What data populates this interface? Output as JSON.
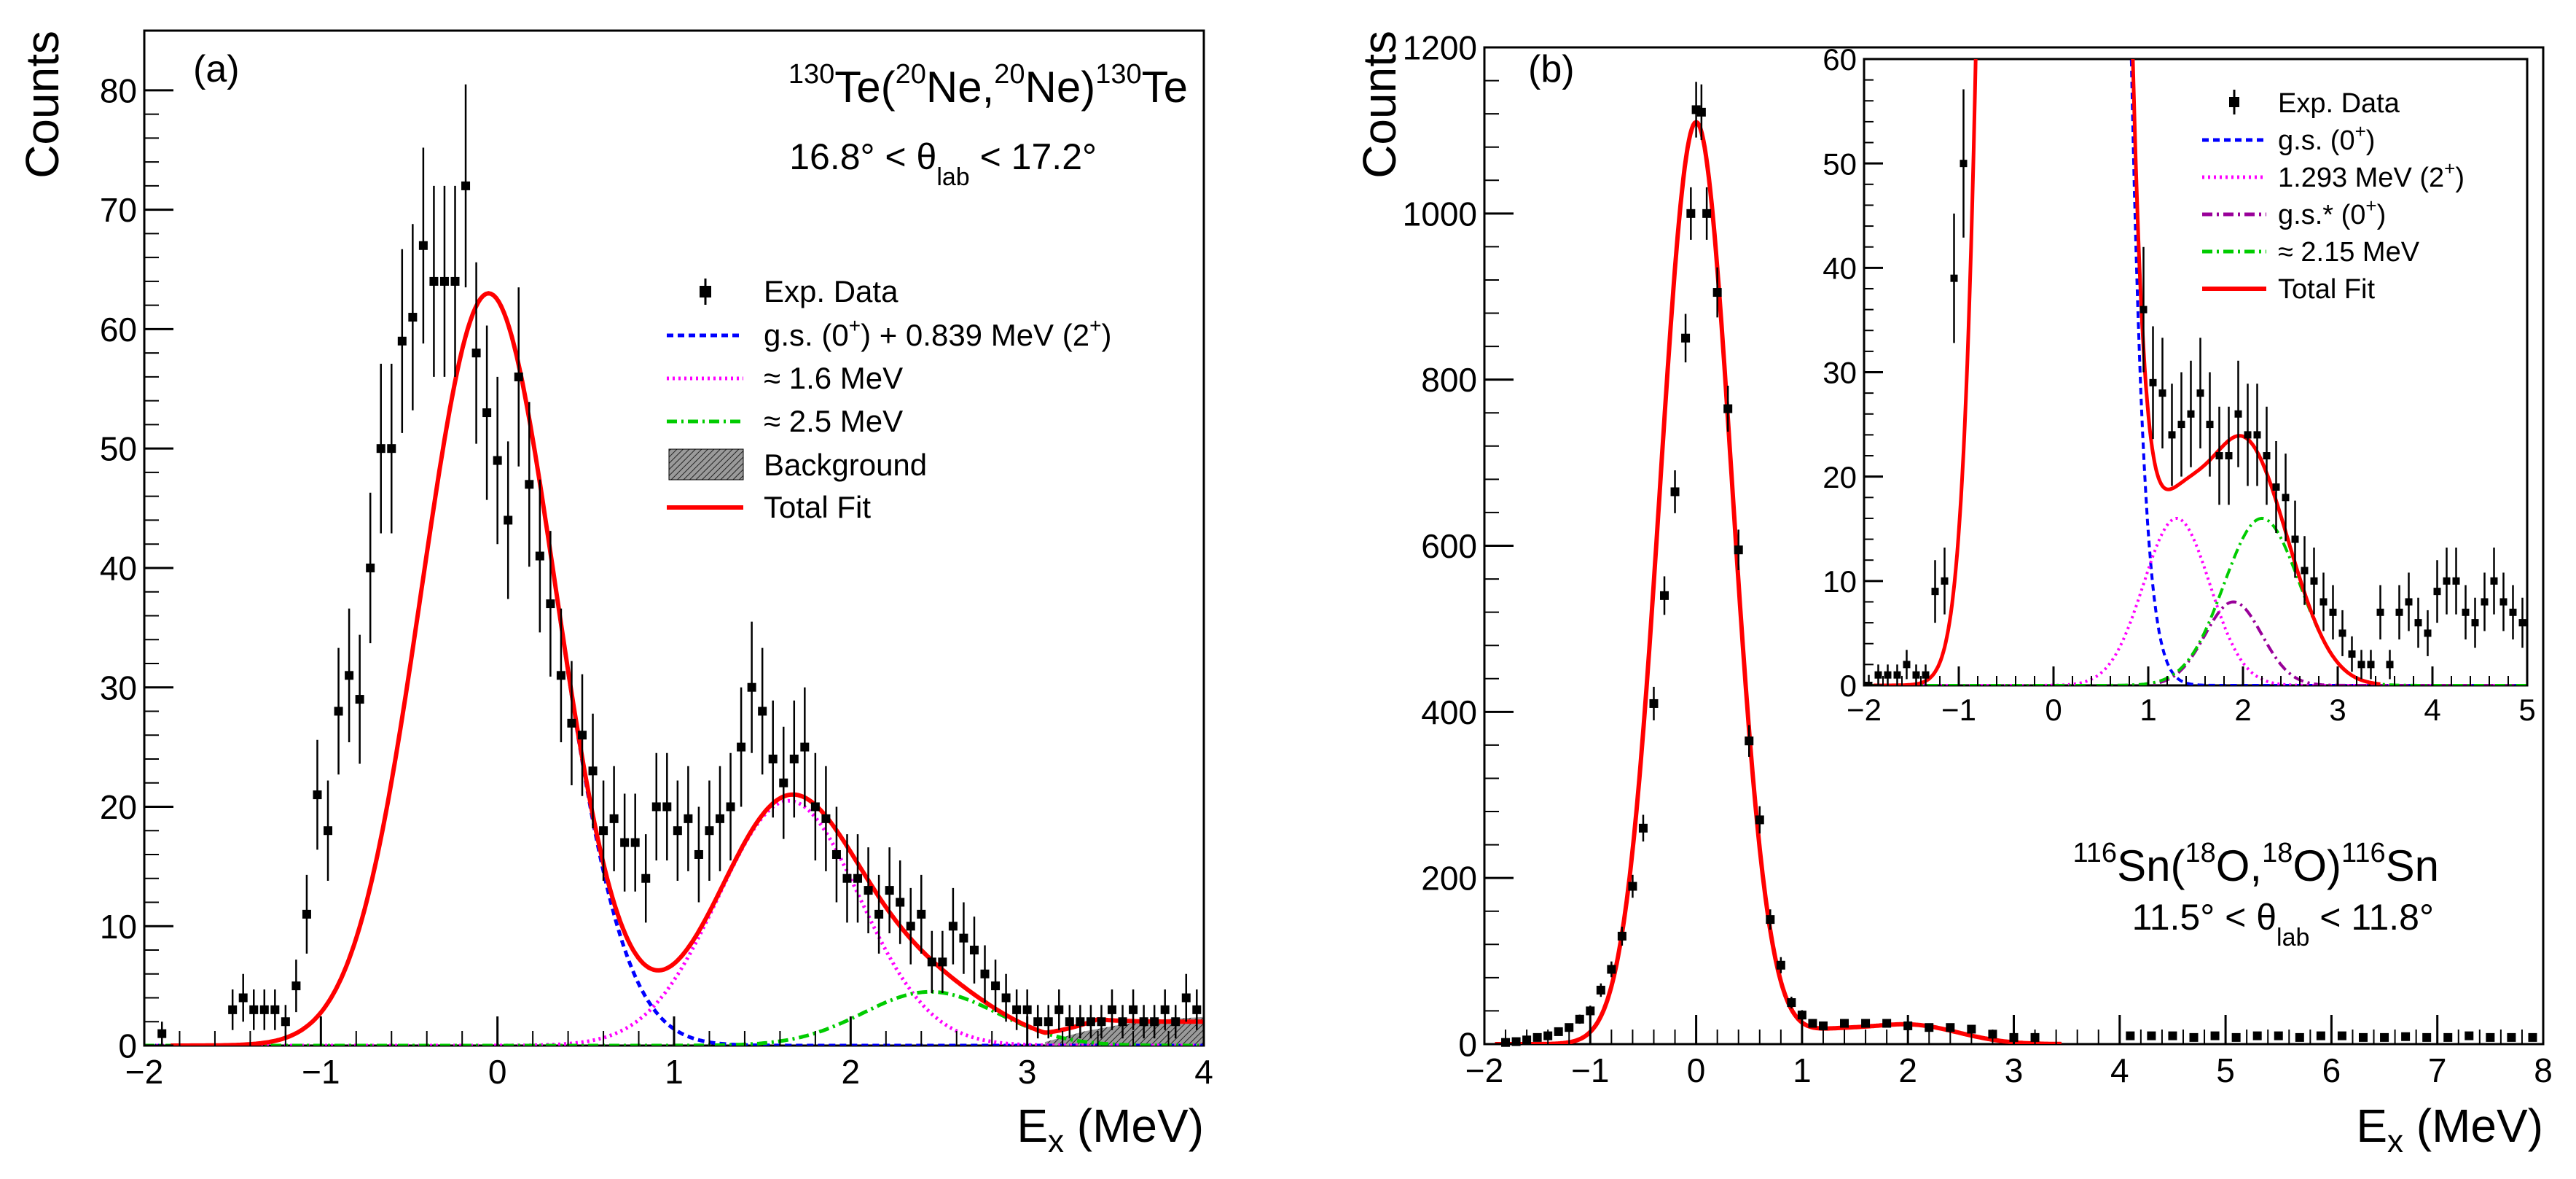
{
  "colors": {
    "frame": "#000000",
    "data": "#000000",
    "fit": "#ff0000",
    "gs": "#0000ff",
    "magenta": "#ff00ff",
    "green": "#00cc00",
    "purple": "#990099"
  },
  "chart_data": [
    {
      "id": "a",
      "type": "scatter",
      "panel_label": "(a)",
      "reaction": {
        "a1": "130",
        "t1": "Te(",
        "a2": "20",
        "t2": "Ne,",
        "a3": "20",
        "t3": "Ne)",
        "a4": "130",
        "t4": "Te"
      },
      "angle": {
        "pre": "16.8° < θ",
        "sub": "lab",
        "post": " < 17.2°"
      },
      "xlabel": {
        "main": "E",
        "sub": "x",
        "unit": " (MeV)"
      },
      "ylabel": "Counts",
      "xlim": [
        -2,
        4
      ],
      "ylim": [
        0,
        85
      ],
      "xticks": [
        -2,
        -1,
        0,
        1,
        2,
        3,
        4
      ],
      "yticks": [
        0,
        10,
        20,
        30,
        40,
        50,
        60,
        70,
        80
      ],
      "legend_position": "right",
      "legend": [
        {
          "key": "data",
          "text": "Exp. Data"
        },
        {
          "key": "gs",
          "text": "g.s. (0",
          "sup": "+",
          "text2": ") + 0.839 MeV (2",
          "sup2": "+",
          "text3": ")"
        },
        {
          "key": "c16",
          "text": "≈ 1.6 MeV"
        },
        {
          "key": "c25",
          "text": "≈ 2.5 MeV"
        },
        {
          "key": "bg",
          "text": "Background"
        },
        {
          "key": "fit",
          "text": "Total Fit"
        }
      ],
      "data_points": {
        "x": [
          -1.9,
          -1.5,
          -1.44,
          -1.38,
          -1.32,
          -1.26,
          -1.2,
          -1.14,
          -1.08,
          -1.02,
          -0.96,
          -0.9,
          -0.84,
          -0.78,
          -0.72,
          -0.66,
          -0.6,
          -0.54,
          -0.48,
          -0.42,
          -0.36,
          -0.3,
          -0.24,
          -0.18,
          -0.12,
          -0.06,
          0.0,
          0.06,
          0.12,
          0.18,
          0.24,
          0.3,
          0.36,
          0.42,
          0.48,
          0.54,
          0.6,
          0.66,
          0.72,
          0.78,
          0.84,
          0.9,
          0.96,
          1.02,
          1.08,
          1.14,
          1.2,
          1.26,
          1.32,
          1.38,
          1.44,
          1.5,
          1.56,
          1.62,
          1.68,
          1.74,
          1.8,
          1.86,
          1.92,
          1.98,
          2.04,
          2.1,
          2.16,
          2.22,
          2.28,
          2.34,
          2.4,
          2.46,
          2.52,
          2.58,
          2.64,
          2.7,
          2.76,
          2.82,
          2.88,
          2.94,
          3.0,
          3.06,
          3.12,
          3.18,
          3.24,
          3.3,
          3.36,
          3.42,
          3.48,
          3.54,
          3.6,
          3.66,
          3.72,
          3.78,
          3.84,
          3.9,
          3.96
        ],
        "y": [
          1,
          3,
          4,
          3,
          3,
          3,
          2,
          5,
          11,
          21,
          18,
          28,
          31,
          29,
          40,
          50,
          50,
          59,
          61,
          67,
          64,
          64,
          64,
          72,
          58,
          53,
          49,
          44,
          56,
          47,
          41,
          37,
          31,
          27,
          26,
          23,
          18,
          19,
          17,
          17,
          14,
          20,
          20,
          18,
          19,
          16,
          18,
          19,
          20,
          25,
          30,
          28,
          24,
          22,
          24,
          25,
          20,
          19,
          16,
          14,
          14,
          13,
          11,
          13,
          12,
          10,
          11,
          7,
          7,
          10,
          9,
          8,
          6,
          5,
          4,
          3,
          3,
          2,
          2,
          3,
          2,
          2,
          2,
          2,
          3,
          2,
          3,
          2,
          2,
          3,
          2,
          4,
          3
        ],
        "err": [
          1,
          1.7,
          2,
          1.7,
          1.7,
          1.7,
          1.4,
          2.2,
          3.3,
          4.6,
          4.2,
          5.3,
          5.6,
          5.4,
          6.3,
          7.1,
          7.1,
          7.7,
          7.8,
          8.2,
          8,
          8,
          8,
          8.5,
          7.6,
          7.3,
          7,
          6.6,
          7.5,
          6.9,
          6.4,
          6.1,
          5.6,
          5.2,
          5.1,
          4.8,
          4.2,
          4.4,
          4.1,
          4.1,
          3.7,
          4.5,
          4.5,
          4.2,
          4.4,
          4,
          4.2,
          4.4,
          4.5,
          5,
          5.5,
          5.3,
          4.9,
          4.7,
          4.9,
          5,
          4.5,
          4.4,
          4,
          3.7,
          3.7,
          3.6,
          3.3,
          3.6,
          3.5,
          3.2,
          3.3,
          2.6,
          2.6,
          3.2,
          3,
          2.8,
          2.4,
          2.2,
          2,
          1.7,
          1.7,
          1.4,
          1.4,
          1.7,
          1.4,
          1.4,
          1.4,
          1.4,
          1.7,
          1.4,
          1.7,
          1.4,
          1.4,
          1.7,
          1.4,
          2,
          1.7
        ]
      },
      "components": [
        {
          "key": "gs",
          "color": "#0000ff",
          "dash": "dotted-dense",
          "peaks": [
            {
              "mu": -0.05,
              "sigma": 0.38,
              "amp": 63
            }
          ]
        },
        {
          "key": "c16",
          "color": "#ff00ff",
          "dash": "dotted",
          "peaks": [
            {
              "mu": 1.65,
              "sigma": 0.4,
              "amp": 20.5
            }
          ]
        },
        {
          "key": "c25",
          "color": "#00cc00",
          "dash": "dashdot",
          "peaks": [
            {
              "mu": 2.45,
              "sigma": 0.38,
              "amp": 4.5
            }
          ]
        }
      ],
      "background": {
        "start": 3.1,
        "end": 4.0,
        "values": [
          0.3,
          1.2,
          1.8,
          2.2,
          2.4
        ]
      },
      "fit": {
        "color": "#ff0000",
        "peaks": [
          {
            "mu": -0.05,
            "sigma": 0.38,
            "amp": 63
          },
          {
            "mu": 1.65,
            "sigma": 0.4,
            "amp": 20.5
          },
          {
            "mu": 2.45,
            "sigma": 0.38,
            "amp": 4.5
          }
        ],
        "tail": {
          "start": 3.1,
          "value": 2.0
        }
      }
    },
    {
      "id": "b",
      "type": "scatter",
      "panel_label": "(b)",
      "reaction": {
        "a1": "116",
        "t1": "Sn(",
        "a2": "18",
        "t2": "O,",
        "a3": "18",
        "t3": "O)",
        "a4": "116",
        "t4": "Sn"
      },
      "angle": {
        "pre": "11.5° < θ",
        "sub": "lab",
        "post": " < 11.8°"
      },
      "xlabel": {
        "main": "E",
        "sub": "x",
        "unit": " (MeV)"
      },
      "ylabel": "Counts",
      "xlim": [
        -2,
        8
      ],
      "ylim": [
        0,
        1200
      ],
      "xticks": [
        -2,
        -1,
        0,
        1,
        2,
        3,
        4,
        5,
        6,
        7,
        8
      ],
      "yticks": [
        0,
        200,
        400,
        600,
        800,
        1000,
        1200
      ],
      "data_points": {
        "x": [
          -1.8,
          -1.7,
          -1.6,
          -1.5,
          -1.4,
          -1.3,
          -1.2,
          -1.1,
          -1.0,
          -0.9,
          -0.8,
          -0.7,
          -0.6,
          -0.5,
          -0.4,
          -0.3,
          -0.2,
          -0.1,
          -0.05,
          0.0,
          0.05,
          0.1,
          0.2,
          0.3,
          0.4,
          0.5,
          0.6,
          0.7,
          0.8,
          0.9,
          1.0,
          1.1,
          1.2,
          1.4,
          1.6,
          1.8,
          2.0,
          2.2,
          2.4,
          2.6,
          2.8,
          3.0,
          3.2,
          4.1,
          4.3,
          4.5,
          4.7,
          4.9,
          5.1,
          5.3,
          5.5,
          5.7,
          5.9,
          6.1,
          6.3,
          6.5,
          6.7,
          6.9,
          7.1,
          7.3,
          7.5,
          7.7,
          7.9
        ],
        "y": [
          2,
          3,
          5,
          8,
          10,
          15,
          20,
          30,
          40,
          65,
          90,
          130,
          190,
          260,
          410,
          540,
          665,
          850,
          1000,
          1125,
          1122,
          1000,
          905,
          765,
          595,
          365,
          270,
          150,
          95,
          50,
          35,
          25,
          22,
          25,
          25,
          25,
          22,
          20,
          20,
          18,
          12,
          8,
          8,
          10,
          10,
          10,
          8,
          10,
          8,
          10,
          10,
          8,
          10,
          10,
          8,
          8,
          9,
          8,
          8,
          10,
          8,
          8,
          8
        ],
        "err": [
          1.4,
          1.7,
          2.2,
          2.8,
          3.2,
          3.9,
          4.5,
          5.5,
          6.3,
          8.1,
          9.5,
          11.4,
          13.8,
          16.1,
          20.2,
          23.2,
          25.8,
          29.2,
          31.6,
          33.5,
          33.5,
          31.6,
          30.1,
          27.7,
          24.4,
          19.1,
          16.4,
          12.2,
          9.7,
          7.1,
          5.9,
          5,
          4.7,
          5,
          5,
          5,
          4.7,
          4.5,
          4.5,
          4.2,
          3.5,
          2.8,
          2.8,
          3.2,
          3.2,
          3.2,
          2.8,
          3.2,
          2.8,
          3.2,
          3.2,
          2.8,
          3.2,
          3.2,
          2.8,
          2.8,
          3,
          2.8,
          2.8,
          3.2,
          2.8,
          2.8,
          2.8
        ]
      },
      "fit": {
        "color": "#ff0000",
        "peaks": [
          {
            "mu": 0,
            "sigma": 0.34,
            "amp": 1110
          },
          {
            "mu": 1.3,
            "sigma": 0.35,
            "amp": 16
          },
          {
            "mu": 2.2,
            "sigma": 0.4,
            "amp": 16
          },
          {
            "mu": 1.9,
            "sigma": 0.3,
            "amp": 8
          }
        ],
        "end": 3.45
      },
      "inset": {
        "xlim": [
          -2,
          5
        ],
        "ylim": [
          0,
          60
        ],
        "xticks": [
          -2,
          -1,
          0,
          1,
          2,
          3,
          4,
          5
        ],
        "yticks": [
          0,
          10,
          20,
          30,
          40,
          50,
          60
        ],
        "legend": [
          {
            "key": "data",
            "text": "Exp. Data"
          },
          {
            "key": "gs",
            "text": "g.s. (0",
            "sup": "+",
            "text2": ")"
          },
          {
            "key": "c1293",
            "text": "1.293 MeV (2",
            "sup": "+",
            "text2": ")"
          },
          {
            "key": "gsstar",
            "text": "g.s.* (0",
            "sup": "+",
            "text2": ")"
          },
          {
            "key": "c215",
            "text": "≈ 2.15 MeV"
          },
          {
            "key": "fit",
            "text": "Total Fit"
          }
        ],
        "data_points": {
          "x": [
            -1.95,
            -1.85,
            -1.75,
            -1.65,
            -1.55,
            -1.45,
            -1.35,
            -1.25,
            -1.15,
            -1.05,
            -0.95,
            0.95,
            1.05,
            1.15,
            1.25,
            1.35,
            1.45,
            1.55,
            1.65,
            1.75,
            1.85,
            1.95,
            2.05,
            2.15,
            2.25,
            2.35,
            2.45,
            2.55,
            2.65,
            2.75,
            2.85,
            2.95,
            3.05,
            3.15,
            3.25,
            3.35,
            3.45,
            3.55,
            3.65,
            3.75,
            3.85,
            3.95,
            4.05,
            4.15,
            4.25,
            4.35,
            4.45,
            4.55,
            4.65,
            4.75,
            4.85,
            4.95
          ],
          "y": [
            0,
            1,
            1,
            1,
            2,
            1,
            1,
            9,
            10,
            39,
            50,
            36,
            29,
            28,
            24,
            25,
            26,
            28,
            25,
            22,
            22,
            26,
            24,
            24,
            22,
            19,
            18,
            14,
            11,
            10,
            8,
            7,
            5,
            3,
            2,
            2,
            7,
            2,
            7,
            8,
            6,
            5,
            9,
            10,
            10,
            7,
            6,
            8,
            10,
            8,
            7,
            6
          ],
          "err": [
            1,
            1,
            1,
            1,
            1.4,
            1,
            1,
            3,
            3.2,
            6.2,
            7.1,
            6,
            5.4,
            5.3,
            4.9,
            5,
            5.1,
            5.3,
            5,
            4.7,
            4.7,
            5.1,
            4.9,
            4.9,
            4.7,
            4.4,
            4.2,
            3.7,
            3.3,
            3.2,
            2.8,
            2.6,
            2.2,
            1.7,
            1.4,
            1.4,
            2.6,
            1.4,
            2.6,
            2.8,
            2.4,
            2.2,
            3,
            3.2,
            3.2,
            2.6,
            2.4,
            2.8,
            3.2,
            2.8,
            2.6,
            2.4
          ]
        },
        "components": [
          {
            "key": "gs",
            "color": "#0000ff",
            "dash": "dotted-dense",
            "peaks": [
              {
                "mu": 0,
                "sigma": 0.34,
                "amp": 1110
              }
            ]
          },
          {
            "key": "c1293",
            "color": "#ff00ff",
            "dash": "dotted",
            "peaks": [
              {
                "mu": 1.3,
                "sigma": 0.35,
                "amp": 16
              }
            ]
          },
          {
            "key": "gsstar",
            "color": "#990099",
            "dash": "dashdot",
            "peaks": [
              {
                "mu": 1.9,
                "sigma": 0.3,
                "amp": 8
              }
            ]
          },
          {
            "key": "c215",
            "color": "#00cc00",
            "dash": "dashdot",
            "peaks": [
              {
                "mu": 2.2,
                "sigma": 0.4,
                "amp": 16
              }
            ]
          }
        ]
      }
    }
  ]
}
